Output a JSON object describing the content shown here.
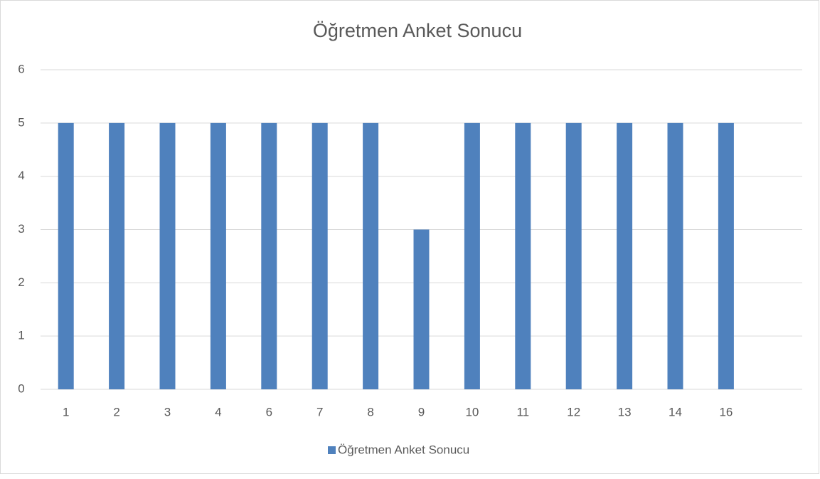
{
  "chart_data": {
    "type": "bar",
    "title": "Öğretmen Anket Sonucu",
    "categories": [
      "1",
      "2",
      "3",
      "4",
      "6",
      "7",
      "8",
      "9",
      "10",
      "11",
      "12",
      "13",
      "14",
      "16",
      null
    ],
    "series": [
      {
        "name": "Öğretmen Anket Sonucu",
        "color": "#4f81bd",
        "values": [
          5,
          5,
          5,
          5,
          5,
          5,
          5,
          3,
          5,
          5,
          5,
          5,
          5,
          5,
          null
        ]
      }
    ],
    "ylim": [
      0,
      6
    ],
    "yticks": [
      0,
      1,
      2,
      3,
      4,
      5,
      6
    ],
    "grid": true,
    "legend": "bottom"
  }
}
